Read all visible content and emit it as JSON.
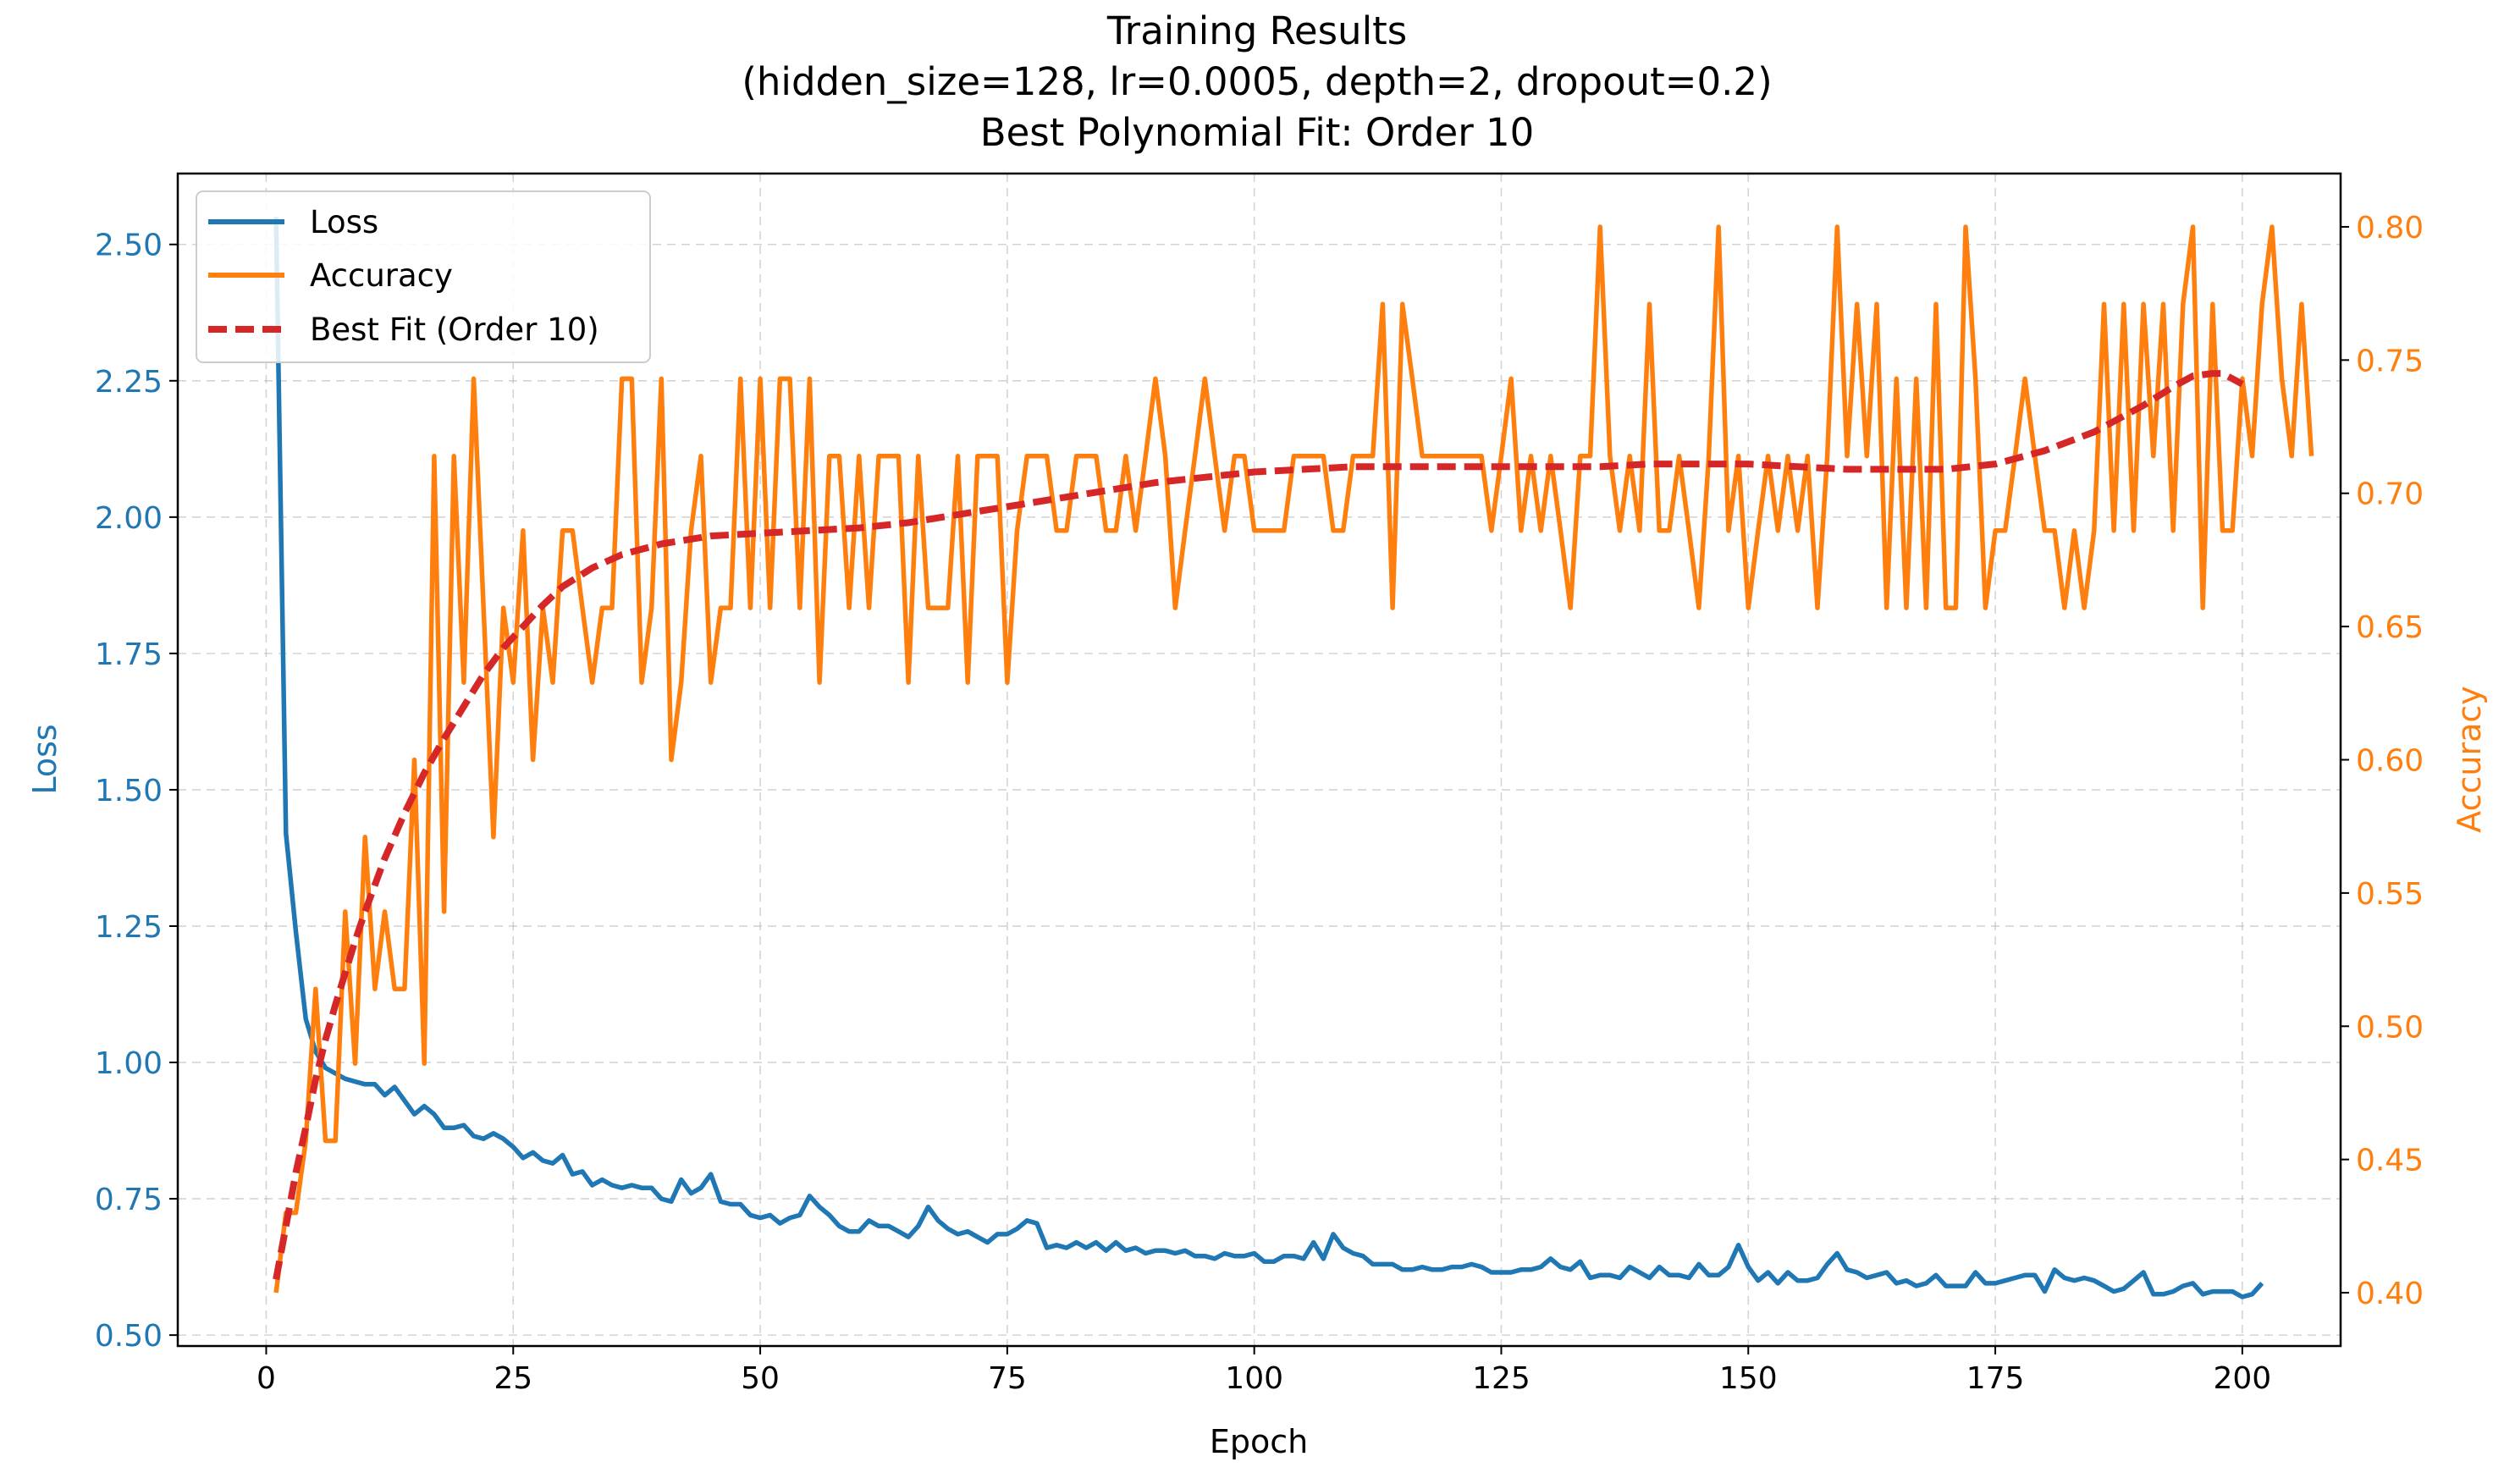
{
  "chart_data": {
    "type": "line",
    "title": [
      "Training Results",
      "(hidden_size=128, lr=0.0005, depth=2, dropout=0.2)",
      "Best Polynomial Fit: Order 10"
    ],
    "xlabel": "Epoch",
    "ylabel_left": "Loss",
    "ylabel_right": "Accuracy",
    "xlim": [
      -8.95,
      209.95
    ],
    "ylim_left": [
      0.48,
      2.63
    ],
    "ylim_right": [
      0.38,
      0.82
    ],
    "xticks": [
      0,
      25,
      50,
      75,
      100,
      125,
      150,
      175,
      200
    ],
    "yticks_left": [
      0.5,
      0.75,
      1.0,
      1.25,
      1.5,
      1.75,
      2.0,
      2.25,
      2.5
    ],
    "yticks_left_labels": [
      "0.50",
      "0.75",
      "1.00",
      "1.25",
      "1.50",
      "1.75",
      "2.00",
      "2.25",
      "2.50"
    ],
    "yticks_right": [
      0.4,
      0.45,
      0.5,
      0.55,
      0.6,
      0.65,
      0.7,
      0.75,
      0.8
    ],
    "yticks_right_labels": [
      "0.40",
      "0.45",
      "0.50",
      "0.55",
      "0.60",
      "0.65",
      "0.70",
      "0.75",
      "0.80"
    ],
    "grid": true,
    "legend_position": "top-left",
    "x_start": 1,
    "series": [
      {
        "name": "Loss",
        "axis": "left",
        "color": "#1f77b4",
        "style": "solid",
        "values": [
          2.55,
          1.42,
          1.24,
          1.08,
          1.02,
          0.99,
          0.98,
          0.97,
          0.965,
          0.96,
          0.96,
          0.94,
          0.955,
          0.93,
          0.905,
          0.92,
          0.905,
          0.88,
          0.88,
          0.885,
          0.865,
          0.86,
          0.87,
          0.86,
          0.845,
          0.825,
          0.835,
          0.82,
          0.815,
          0.83,
          0.795,
          0.8,
          0.775,
          0.785,
          0.775,
          0.77,
          0.775,
          0.77,
          0.77,
          0.75,
          0.745,
          0.785,
          0.76,
          0.77,
          0.795,
          0.745,
          0.74,
          0.74,
          0.72,
          0.715,
          0.72,
          0.705,
          0.715,
          0.72,
          0.755,
          0.735,
          0.72,
          0.7,
          0.69,
          0.69,
          0.71,
          0.7,
          0.7,
          0.69,
          0.68,
          0.7,
          0.735,
          0.71,
          0.695,
          0.685,
          0.69,
          0.68,
          0.67,
          0.685,
          0.685,
          0.695,
          0.71,
          0.705,
          0.66,
          0.665,
          0.66,
          0.67,
          0.66,
          0.67,
          0.655,
          0.67,
          0.655,
          0.66,
          0.65,
          0.655,
          0.655,
          0.65,
          0.655,
          0.645,
          0.645,
          0.64,
          0.65,
          0.645,
          0.645,
          0.65,
          0.635,
          0.635,
          0.645,
          0.645,
          0.64,
          0.67,
          0.64,
          0.685,
          0.66,
          0.65,
          0.645,
          0.63,
          0.63,
          0.63,
          0.62,
          0.62,
          0.625,
          0.62,
          0.62,
          0.625,
          0.625,
          0.63,
          0.625,
          0.615,
          0.615,
          0.615,
          0.62,
          0.62,
          0.625,
          0.64,
          0.625,
          0.62,
          0.635,
          0.605,
          0.61,
          0.61,
          0.605,
          0.625,
          0.615,
          0.605,
          0.625,
          0.61,
          0.61,
          0.605,
          0.63,
          0.61,
          0.61,
          0.625,
          0.665,
          0.625,
          0.6,
          0.615,
          0.595,
          0.615,
          0.6,
          0.6,
          0.605,
          0.63,
          0.65,
          0.62,
          0.615,
          0.605,
          0.61,
          0.615,
          0.595,
          0.6,
          0.59,
          0.595,
          0.61,
          0.59,
          0.59,
          0.59,
          0.615,
          0.595,
          0.595,
          0.6,
          0.605,
          0.61,
          0.61,
          0.58,
          0.62,
          0.605,
          0.6,
          0.605,
          0.6,
          0.59,
          0.58,
          0.585,
          0.6,
          0.615,
          0.575,
          0.575,
          0.58,
          0.59,
          0.595,
          0.575,
          0.58,
          0.58,
          0.58,
          0.57,
          0.575,
          0.595
        ]
      },
      {
        "name": "Accuracy",
        "axis": "right",
        "color": "#ff7f0e",
        "style": "solid",
        "values": [
          0.4,
          0.43,
          0.43,
          0.457,
          0.514,
          0.457,
          0.457,
          0.543,
          0.486,
          0.571,
          0.514,
          0.543,
          0.514,
          0.514,
          0.6,
          0.486,
          0.714,
          0.543,
          0.714,
          0.629,
          0.743,
          0.657,
          0.571,
          0.657,
          0.629,
          0.686,
          0.6,
          0.657,
          0.629,
          0.686,
          0.686,
          0.657,
          0.629,
          0.657,
          0.657,
          0.743,
          0.743,
          0.629,
          0.657,
          0.743,
          0.6,
          0.629,
          0.686,
          0.714,
          0.629,
          0.657,
          0.657,
          0.743,
          0.657,
          0.743,
          0.657,
          0.743,
          0.743,
          0.657,
          0.743,
          0.629,
          0.714,
          0.714,
          0.657,
          0.714,
          0.657,
          0.714,
          0.714,
          0.714,
          0.629,
          0.714,
          0.657,
          0.657,
          0.657,
          0.714,
          0.629,
          0.714,
          0.714,
          0.714,
          0.629,
          0.686,
          0.714,
          0.714,
          0.714,
          0.686,
          0.686,
          0.714,
          0.714,
          0.714,
          0.686,
          0.686,
          0.714,
          0.686,
          0.714,
          0.743,
          0.714,
          0.657,
          0.686,
          0.714,
          0.743,
          0.714,
          0.686,
          0.714,
          0.714,
          0.686,
          0.686,
          0.686,
          0.686,
          0.714,
          0.714,
          0.714,
          0.714,
          0.686,
          0.686,
          0.714,
          0.714,
          0.714,
          0.771,
          0.657,
          0.771,
          0.743,
          0.714,
          0.714,
          0.714,
          0.714,
          0.714,
          0.714,
          0.714,
          0.686,
          0.714,
          0.743,
          0.686,
          0.714,
          0.686,
          0.714,
          0.686,
          0.657,
          0.714,
          0.714,
          0.8,
          0.714,
          0.686,
          0.714,
          0.686,
          0.771,
          0.686,
          0.686,
          0.714,
          0.686,
          0.657,
          0.714,
          0.8,
          0.686,
          0.714,
          0.657,
          0.686,
          0.714,
          0.686,
          0.714,
          0.686,
          0.714,
          0.657,
          0.714,
          0.8,
          0.714,
          0.771,
          0.714,
          0.771,
          0.657,
          0.743,
          0.657,
          0.743,
          0.657,
          0.771,
          0.657,
          0.657,
          0.8,
          0.743,
          0.657,
          0.686,
          0.686,
          0.714,
          0.743,
          0.714,
          0.686,
          0.686,
          0.657,
          0.686,
          0.657,
          0.686,
          0.771,
          0.686,
          0.771,
          0.686,
          0.771,
          0.714,
          0.771,
          0.686,
          0.771,
          0.8,
          0.657,
          0.771,
          0.686,
          0.686,
          0.743,
          0.714,
          0.771,
          0.8,
          0.743,
          0.714,
          0.771,
          0.714
        ]
      },
      {
        "name": "Best Fit (Order 10)",
        "axis": "right",
        "color": "#d62728",
        "style": "dashed",
        "x": [
          1,
          2,
          3,
          4,
          5,
          6,
          7,
          8,
          9,
          10,
          12,
          14,
          16,
          18,
          20,
          22,
          24,
          26,
          28,
          30,
          33,
          36,
          40,
          45,
          50,
          55,
          60,
          65,
          70,
          75,
          80,
          85,
          90,
          95,
          100,
          105,
          110,
          115,
          120,
          125,
          130,
          135,
          140,
          145,
          150,
          155,
          160,
          165,
          170,
          175,
          180,
          185,
          190,
          193,
          195,
          197,
          198,
          199,
          200
        ],
        "values": [
          0.405,
          0.425,
          0.445,
          0.462,
          0.48,
          0.495,
          0.508,
          0.52,
          0.532,
          0.543,
          0.563,
          0.58,
          0.595,
          0.608,
          0.62,
          0.632,
          0.642,
          0.65,
          0.658,
          0.665,
          0.672,
          0.677,
          0.681,
          0.684,
          0.685,
          0.686,
          0.687,
          0.689,
          0.692,
          0.695,
          0.698,
          0.701,
          0.704,
          0.706,
          0.708,
          0.709,
          0.71,
          0.71,
          0.71,
          0.71,
          0.71,
          0.71,
          0.711,
          0.711,
          0.711,
          0.71,
          0.709,
          0.709,
          0.709,
          0.711,
          0.716,
          0.723,
          0.733,
          0.74,
          0.744,
          0.745,
          0.745,
          0.743,
          0.741
        ]
      }
    ]
  }
}
